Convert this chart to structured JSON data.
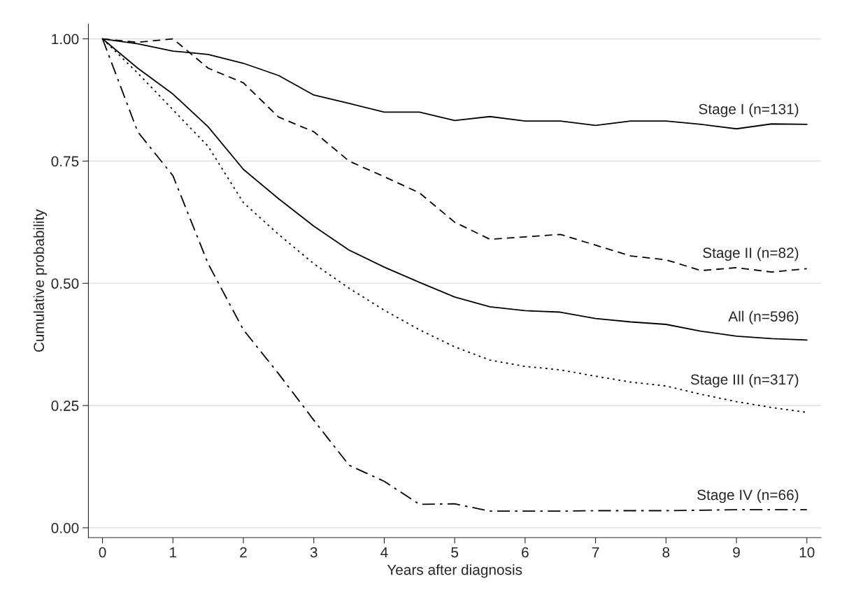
{
  "chart_data": {
    "type": "line",
    "xlabel": "Years after diagnosis",
    "ylabel": "Cumulative probability",
    "x": [
      0,
      0.5,
      1,
      1.5,
      2,
      2.5,
      3,
      3.5,
      4,
      4.5,
      5,
      5.5,
      6,
      6.5,
      7,
      7.5,
      8,
      8.5,
      9,
      9.5,
      10
    ],
    "series": [
      {
        "name": "Stage I (n=131)",
        "color": "#000000",
        "line_style": "solid",
        "values": [
          1.0,
          0.99,
          0.975,
          0.968,
          0.95,
          0.925,
          0.885,
          0.868,
          0.85,
          0.85,
          0.833,
          0.841,
          0.832,
          0.832,
          0.823,
          0.832,
          0.832,
          0.825,
          0.816,
          0.826,
          0.825
        ]
      },
      {
        "name": "Stage II (n=82)",
        "color": "#000000",
        "line_style": "dashed",
        "values": [
          1.0,
          0.993,
          1.0,
          0.94,
          0.91,
          0.84,
          0.81,
          0.75,
          0.718,
          0.685,
          0.625,
          0.59,
          0.595,
          0.6,
          0.578,
          0.556,
          0.548,
          0.526,
          0.532,
          0.523,
          0.53
        ]
      },
      {
        "name": "All (n=596)",
        "color": "#000000",
        "line_style": "solid",
        "values": [
          1.0,
          0.94,
          0.887,
          0.82,
          0.733,
          0.673,
          0.617,
          0.568,
          0.533,
          0.502,
          0.472,
          0.452,
          0.444,
          0.441,
          0.428,
          0.421,
          0.416,
          0.402,
          0.392,
          0.387,
          0.384
        ]
      },
      {
        "name": "Stage III (n=317)",
        "color": "#000000",
        "line_style": "dotted",
        "values": [
          1.0,
          0.93,
          0.855,
          0.78,
          0.665,
          0.6,
          0.54,
          0.49,
          0.445,
          0.405,
          0.37,
          0.343,
          0.33,
          0.323,
          0.31,
          0.298,
          0.29,
          0.273,
          0.258,
          0.246,
          0.236
        ]
      },
      {
        "name": "Stage IV (n=66)",
        "color": "#000000",
        "line_style": "dashdot",
        "values": [
          1.0,
          0.81,
          0.72,
          0.54,
          0.405,
          0.315,
          0.22,
          0.128,
          0.095,
          0.048,
          0.049,
          0.034,
          0.034,
          0.034,
          0.035,
          0.035,
          0.035,
          0.036,
          0.037,
          0.037,
          0.037
        ]
      }
    ],
    "xlim": [
      -0.2,
      10.2
    ],
    "xticks": [
      0,
      1,
      2,
      3,
      4,
      5,
      6,
      7,
      8,
      9,
      10
    ],
    "ylim": [
      -0.02,
      1.03
    ],
    "yticks": [
      {
        "value": 0,
        "label": "0.00"
      },
      {
        "value": 0.25,
        "label": "0.25"
      },
      {
        "value": 0.5,
        "label": "0.50"
      },
      {
        "value": 0.75,
        "label": "0.75"
      },
      {
        "value": 1,
        "label": "1.00"
      }
    ],
    "grid": "y",
    "legend": false
  }
}
